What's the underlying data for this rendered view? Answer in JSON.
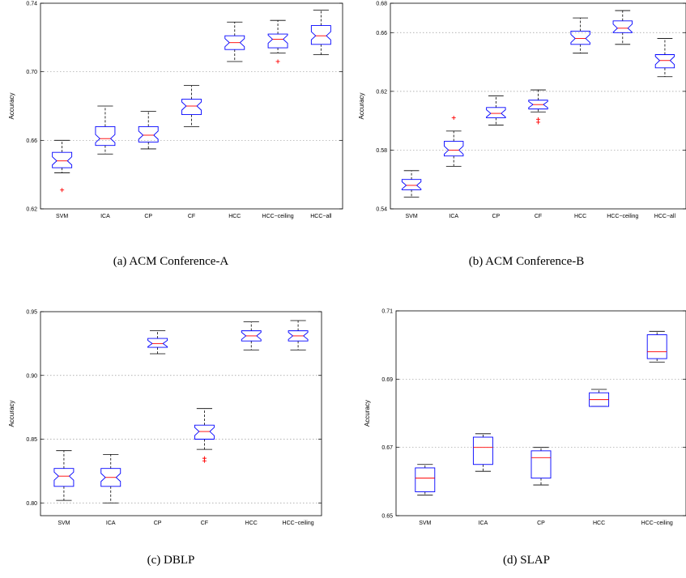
{
  "colors": {
    "box": "#0000ff",
    "median": "#ff0000",
    "whisker": "#000000",
    "outlier": "#ff0000",
    "grid": "#9a9a9a"
  },
  "chart_data": [
    {
      "type": "boxplot",
      "caption": "(a) ACM Conference-A",
      "ylabel": "Accuracy",
      "ylim": [
        0.62,
        0.74
      ],
      "yticks": [
        0.62,
        0.66,
        0.7,
        0.74
      ],
      "ytick_labels": [
        "0.62",
        "0.66",
        "0.70",
        "0.74"
      ],
      "grid": "horizontal dotted",
      "notched": true,
      "categories": [
        "SVM",
        "ICA",
        "CP",
        "CF",
        "HCC",
        "HCC−ceiling",
        "HCC−all"
      ],
      "boxes": [
        {
          "whisker_low": 0.641,
          "q1": 0.644,
          "median": 0.648,
          "q3": 0.653,
          "whisker_high": 0.66,
          "outliers": [
            0.631
          ]
        },
        {
          "whisker_low": 0.652,
          "q1": 0.657,
          "median": 0.661,
          "q3": 0.668,
          "whisker_high": 0.68,
          "outliers": []
        },
        {
          "whisker_low": 0.655,
          "q1": 0.659,
          "median": 0.663,
          "q3": 0.668,
          "whisker_high": 0.677,
          "outliers": []
        },
        {
          "whisker_low": 0.668,
          "q1": 0.675,
          "median": 0.68,
          "q3": 0.684,
          "whisker_high": 0.692,
          "outliers": []
        },
        {
          "whisker_low": 0.706,
          "q1": 0.713,
          "median": 0.717,
          "q3": 0.721,
          "whisker_high": 0.729,
          "outliers": []
        },
        {
          "whisker_low": 0.711,
          "q1": 0.714,
          "median": 0.719,
          "q3": 0.722,
          "whisker_high": 0.73,
          "outliers": [
            0.706
          ]
        },
        {
          "whisker_low": 0.71,
          "q1": 0.716,
          "median": 0.721,
          "q3": 0.727,
          "whisker_high": 0.736,
          "outliers": []
        }
      ]
    },
    {
      "type": "boxplot",
      "caption": "(b) ACM Conference-B",
      "ylabel": "Accuracy",
      "ylim": [
        0.54,
        0.68
      ],
      "yticks": [
        0.54,
        0.58,
        0.62,
        0.66,
        0.68
      ],
      "ytick_labels": [
        "0.54",
        "0.58",
        "0.62",
        "0.66",
        "0.68"
      ],
      "grid": "horizontal dotted",
      "notched": true,
      "categories": [
        "SVM",
        "ICA",
        "CP",
        "CF",
        "HCC",
        "HCC−ceiling",
        "HCC−all"
      ],
      "boxes": [
        {
          "whisker_low": 0.548,
          "q1": 0.553,
          "median": 0.556,
          "q3": 0.56,
          "whisker_high": 0.566,
          "outliers": []
        },
        {
          "whisker_low": 0.569,
          "q1": 0.576,
          "median": 0.58,
          "q3": 0.586,
          "whisker_high": 0.593,
          "outliers": [
            0.602
          ]
        },
        {
          "whisker_low": 0.597,
          "q1": 0.602,
          "median": 0.605,
          "q3": 0.609,
          "whisker_high": 0.617,
          "outliers": []
        },
        {
          "whisker_low": 0.606,
          "q1": 0.608,
          "median": 0.611,
          "q3": 0.614,
          "whisker_high": 0.621,
          "outliers": [
            0.599,
            0.601
          ]
        },
        {
          "whisker_low": 0.646,
          "q1": 0.652,
          "median": 0.656,
          "q3": 0.661,
          "whisker_high": 0.67,
          "outliers": []
        },
        {
          "whisker_low": 0.652,
          "q1": 0.66,
          "median": 0.663,
          "q3": 0.668,
          "whisker_high": 0.675,
          "outliers": []
        },
        {
          "whisker_low": 0.63,
          "q1": 0.636,
          "median": 0.641,
          "q3": 0.645,
          "whisker_high": 0.656,
          "outliers": []
        }
      ]
    },
    {
      "type": "boxplot",
      "caption": "(c) DBLP",
      "ylabel": "Accuracy",
      "ylim": [
        0.79,
        0.95
      ],
      "yticks": [
        0.8,
        0.85,
        0.9,
        0.95
      ],
      "ytick_labels": [
        "0.80",
        "0.85",
        "0.90",
        "0.95"
      ],
      "grid": "horizontal dotted",
      "notched": true,
      "categories": [
        "SVM",
        "ICA",
        "CP",
        "CF",
        "HCC",
        "HCC−ceiling"
      ],
      "boxes": [
        {
          "whisker_low": 0.802,
          "q1": 0.813,
          "median": 0.821,
          "q3": 0.827,
          "whisker_high": 0.841,
          "outliers": []
        },
        {
          "whisker_low": 0.8,
          "q1": 0.813,
          "median": 0.82,
          "q3": 0.827,
          "whisker_high": 0.838,
          "outliers": []
        },
        {
          "whisker_low": 0.917,
          "q1": 0.922,
          "median": 0.925,
          "q3": 0.929,
          "whisker_high": 0.935,
          "outliers": []
        },
        {
          "whisker_low": 0.842,
          "q1": 0.85,
          "median": 0.856,
          "q3": 0.861,
          "whisker_high": 0.874,
          "outliers": [
            0.833,
            0.835
          ]
        },
        {
          "whisker_low": 0.92,
          "q1": 0.927,
          "median": 0.931,
          "q3": 0.935,
          "whisker_high": 0.942,
          "outliers": []
        },
        {
          "whisker_low": 0.92,
          "q1": 0.927,
          "median": 0.931,
          "q3": 0.935,
          "whisker_high": 0.943,
          "outliers": []
        }
      ]
    },
    {
      "type": "boxplot",
      "caption": "(d) SLAP",
      "ylabel": "Accuracy",
      "ylim": [
        0.65,
        0.71
      ],
      "yticks": [
        0.65,
        0.67,
        0.69,
        0.71
      ],
      "ytick_labels": [
        "0.65",
        "0.67",
        "0.69",
        "0.71"
      ],
      "grid": "horizontal dotted",
      "notched": false,
      "categories": [
        "SVM",
        "ICA",
        "CP",
        "HCC",
        "HCC−ceiling"
      ],
      "boxes": [
        {
          "whisker_low": 0.656,
          "q1": 0.657,
          "median": 0.661,
          "q3": 0.664,
          "whisker_high": 0.665,
          "outliers": []
        },
        {
          "whisker_low": 0.663,
          "q1": 0.665,
          "median": 0.67,
          "q3": 0.673,
          "whisker_high": 0.674,
          "outliers": []
        },
        {
          "whisker_low": 0.659,
          "q1": 0.661,
          "median": 0.667,
          "q3": 0.669,
          "whisker_high": 0.67,
          "outliers": []
        },
        {
          "whisker_low": 0.682,
          "q1": 0.682,
          "median": 0.684,
          "q3": 0.686,
          "whisker_high": 0.687,
          "outliers": []
        },
        {
          "whisker_low": 0.695,
          "q1": 0.696,
          "median": 0.698,
          "q3": 0.703,
          "whisker_high": 0.704,
          "outliers": []
        }
      ]
    }
  ]
}
